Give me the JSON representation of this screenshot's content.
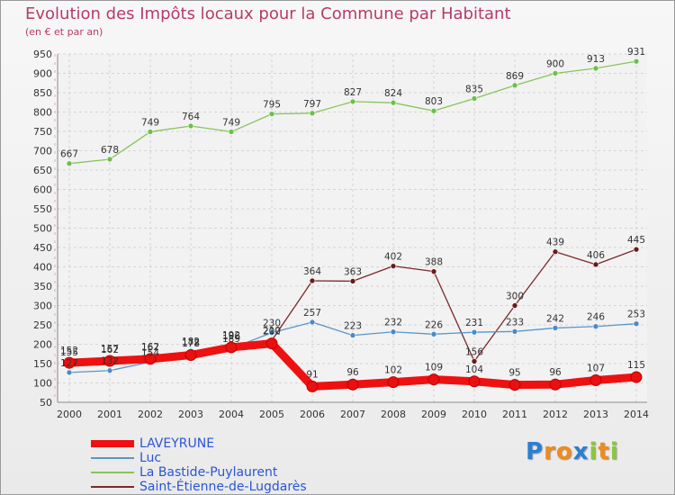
{
  "header": {
    "title": "Evolution des Impôts locaux pour la Commune par Habitant",
    "subtitle": "(en € et par an)"
  },
  "logo": {
    "text": "Proxiti",
    "letters": [
      "P",
      "r",
      "o",
      "x",
      "i",
      "t",
      "i"
    ],
    "colors": [
      "#2a7fd4",
      "#f08a1c",
      "#f08a1c",
      "#2a7fd4",
      "#8cc63f",
      "#f08a1c",
      "#8cc63f"
    ]
  },
  "chart_data": {
    "type": "line",
    "title": "Evolution des Impôts locaux pour la Commune par Habitant",
    "subtitle": "(en € et par an)",
    "xlabel": "",
    "ylabel": "",
    "ylim": [
      50,
      950
    ],
    "yticks": [
      50,
      100,
      150,
      200,
      250,
      300,
      350,
      400,
      450,
      500,
      550,
      600,
      650,
      700,
      750,
      800,
      850,
      900,
      950
    ],
    "grid": true,
    "legend_position": "bottom-left",
    "categories": [
      "2000",
      "2001",
      "2002",
      "2003",
      "2004",
      "2005",
      "2006",
      "2007",
      "2008",
      "2009",
      "2010",
      "2011",
      "2012",
      "2013",
      "2014"
    ],
    "series": [
      {
        "name": "La Bastide-Puylaurent",
        "color": "#88c45a",
        "marker": "#6cc04a",
        "values": [
          667,
          678,
          749,
          764,
          749,
          795,
          797,
          827,
          824,
          803,
          835,
          869,
          900,
          913,
          931
        ],
        "labels": [
          "667",
          "678",
          "749",
          "764",
          "749",
          "795",
          "797",
          "827",
          "824",
          "803",
          "835",
          "869",
          "900",
          "913",
          "931"
        ]
      },
      {
        "name": "Saint-Étienne-de-Lugdarès",
        "color": "#7a2a2a",
        "marker": "#6a1a1a",
        "values": [
          155,
          162,
          167,
          178,
          196,
          210,
          364,
          363,
          402,
          388,
          156,
          300,
          439,
          406,
          445
        ],
        "labels": [
          "155",
          "162",
          "167",
          "178",
          "196",
          "210",
          "364",
          "363",
          "402",
          "388",
          "156",
          "300",
          "439",
          "406",
          "445"
        ]
      },
      {
        "name": "Luc",
        "color": "#5a96c8",
        "marker": "#4a8ac8",
        "values": [
          127,
          132,
          154,
          182,
          189,
          230,
          257,
          223,
          232,
          226,
          231,
          233,
          242,
          246,
          253
        ],
        "labels": [
          "127",
          "132",
          "154",
          "182",
          "189",
          "230",
          "257",
          "223",
          "232",
          "226",
          "231",
          "233",
          "242",
          "246",
          "253"
        ]
      },
      {
        "name": "LAVEYRUNE",
        "color": "#ee1111",
        "marker": "#e81010",
        "values": [
          152,
          157,
          162,
          172,
          192,
          202,
          91,
          96,
          102,
          109,
          104,
          95,
          96,
          107,
          115
        ],
        "labels": [
          "152",
          "157",
          "162",
          "172",
          "192",
          "202",
          "91",
          "96",
          "102",
          "109",
          "104",
          "95",
          "96",
          "107",
          "115"
        ]
      }
    ],
    "legend": [
      "LAVEYRUNE",
      "Luc",
      "La Bastide-Puylaurent",
      "Saint-Étienne-de-Lugdarès"
    ]
  }
}
